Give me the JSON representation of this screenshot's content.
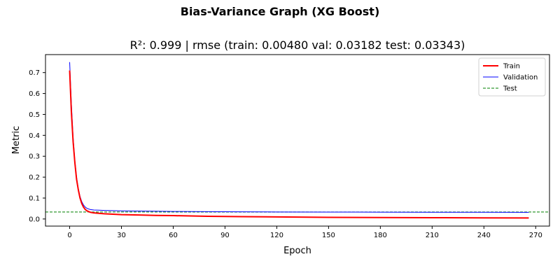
{
  "figure": {
    "suptitle": "Bias-Variance Graph (XG Boost)"
  },
  "chart_data": {
    "type": "line",
    "title": "R²: 0.999 | rmse (train: 0.00480  val: 0.03182  test: 0.03343)",
    "xlabel": "Epoch",
    "ylabel": "Metric",
    "xlim": [
      -14,
      278
    ],
    "ylim": [
      -0.034,
      0.786
    ],
    "xticks": [
      0,
      30,
      60,
      90,
      120,
      150,
      180,
      210,
      240,
      270
    ],
    "yticks": [
      0.0,
      0.1,
      0.2,
      0.3,
      0.4,
      0.5,
      0.6,
      0.7
    ],
    "legend_position": "top-right",
    "series": [
      {
        "name": "Train",
        "color": "#ff0000",
        "style": "solid",
        "x": [
          0,
          1,
          2,
          3,
          4,
          5,
          6,
          7,
          8,
          9,
          10,
          12,
          14,
          17,
          20,
          25,
          30,
          40,
          50,
          60,
          80,
          100,
          120,
          150,
          180,
          210,
          240,
          266
        ],
        "y": [
          0.71,
          0.51,
          0.37,
          0.27,
          0.19,
          0.14,
          0.1,
          0.074,
          0.057,
          0.046,
          0.039,
          0.032,
          0.029,
          0.027,
          0.025,
          0.023,
          0.021,
          0.019,
          0.017,
          0.016,
          0.013,
          0.011,
          0.01,
          0.008,
          0.007,
          0.0062,
          0.0055,
          0.0048
        ]
      },
      {
        "name": "Validation",
        "color": "#0000ff",
        "style": "solid",
        "x": [
          0,
          1,
          2,
          3,
          4,
          5,
          6,
          7,
          8,
          9,
          10,
          12,
          14,
          17,
          20,
          25,
          30,
          40,
          50,
          60,
          80,
          100,
          120,
          150,
          180,
          210,
          240,
          266
        ],
        "y": [
          0.75,
          0.55,
          0.39,
          0.28,
          0.2,
          0.145,
          0.108,
          0.083,
          0.067,
          0.057,
          0.051,
          0.045,
          0.043,
          0.042,
          0.041,
          0.04,
          0.039,
          0.038,
          0.037,
          0.036,
          0.035,
          0.034,
          0.0335,
          0.033,
          0.0325,
          0.0322,
          0.032,
          0.0318
        ]
      },
      {
        "name": "Test",
        "color": "#008000",
        "style": "dashed",
        "x": [
          -14,
          278
        ],
        "y": [
          0.03343,
          0.03343
        ]
      }
    ]
  }
}
